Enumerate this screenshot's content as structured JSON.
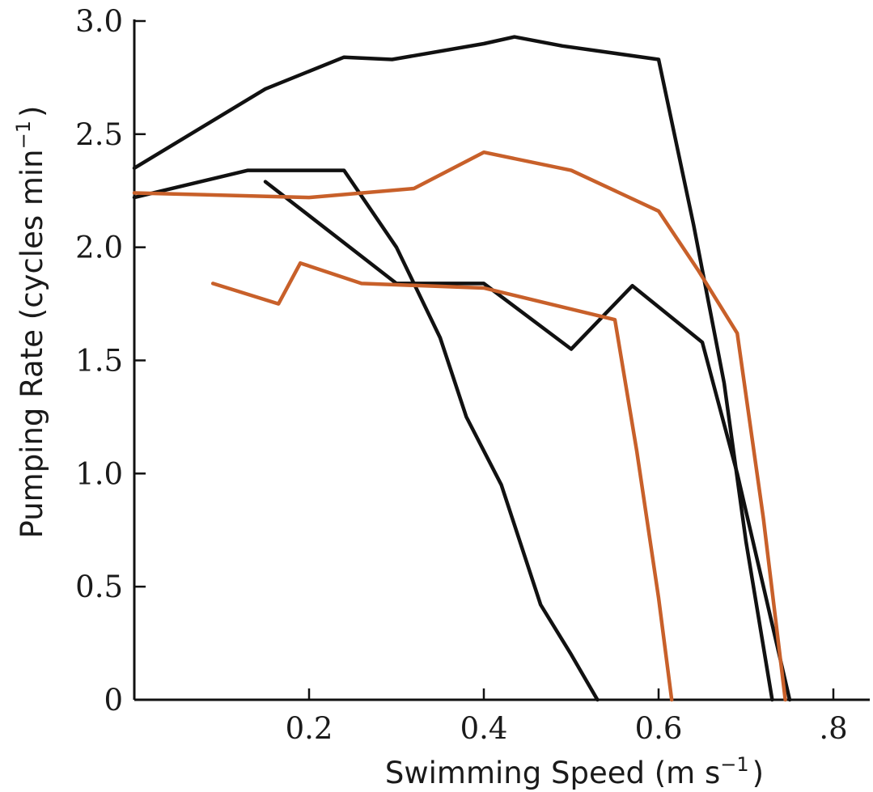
{
  "chart_data": {
    "type": "line",
    "title": "",
    "xlabel": "Swimming Speed (m s",
    "xlabel_sup": "−1",
    "xlabel_end": ")",
    "ylabel": "Pumping Rate (cycles min",
    "ylabel_sup": "−1",
    "ylabel_end": ")",
    "xlim": [
      0,
      0.8
    ],
    "ylim": [
      0,
      3.0
    ],
    "xticks": [
      0.2,
      0.4,
      0.6,
      0.8
    ],
    "xtick_labels": [
      "0.2",
      "0.4",
      "0.6",
      ".8"
    ],
    "yticks": [
      0,
      0.5,
      1.0,
      1.5,
      2.0,
      2.5,
      3.0
    ],
    "ytick_labels": [
      "0",
      "0.5",
      "1.0",
      "1.5",
      "2.0",
      "2.5",
      "3.0"
    ],
    "grid": false,
    "series": [
      {
        "color": "#111111",
        "x": [
          0.0,
          0.15,
          0.24,
          0.295,
          0.4,
          0.435,
          0.49,
          0.6,
          0.64,
          0.675,
          0.7,
          0.73
        ],
        "y": [
          2.35,
          2.7,
          2.84,
          2.83,
          2.9,
          2.93,
          2.89,
          2.83,
          2.1,
          1.4,
          0.7,
          0.0
        ]
      },
      {
        "color": "#111111",
        "x": [
          0.0,
          0.13,
          0.24,
          0.3,
          0.35,
          0.38,
          0.42,
          0.465,
          0.5,
          0.53
        ],
        "y": [
          2.22,
          2.34,
          2.34,
          2.0,
          1.6,
          1.25,
          0.95,
          0.42,
          0.2,
          0.0
        ]
      },
      {
        "color": "#111111",
        "x": [
          0.15,
          0.3,
          0.4,
          0.5,
          0.57,
          0.65,
          0.69,
          0.75
        ],
        "y": [
          2.29,
          1.84,
          1.84,
          1.55,
          1.83,
          1.58,
          1.0,
          0.0
        ]
      },
      {
        "color": "#c8602a",
        "x": [
          0.0,
          0.2,
          0.32,
          0.4,
          0.5,
          0.6,
          0.645,
          0.69,
          0.72,
          0.745
        ],
        "y": [
          2.24,
          2.22,
          2.26,
          2.42,
          2.34,
          2.16,
          1.9,
          1.62,
          0.8,
          0.0
        ]
      },
      {
        "color": "#c8602a",
        "x": [
          0.09,
          0.165,
          0.19,
          0.26,
          0.4,
          0.55,
          0.575,
          0.6,
          0.615
        ],
        "y": [
          1.84,
          1.75,
          1.93,
          1.84,
          1.82,
          1.68,
          1.1,
          0.45,
          0.0
        ]
      }
    ]
  }
}
